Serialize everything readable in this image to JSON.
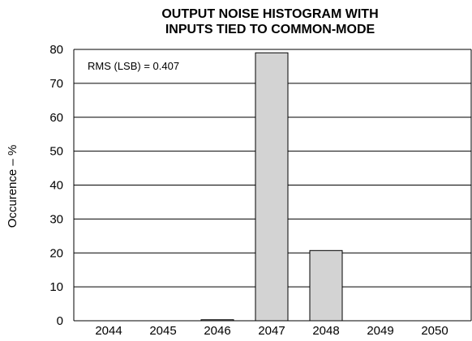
{
  "chart_data": {
    "type": "bar",
    "title_lines": [
      "OUTPUT NOISE HISTOGRAM WITH",
      "INPUTS TIED TO COMMON-MODE"
    ],
    "xlabel": "",
    "ylabel": "Occurence – %",
    "categories": [
      "2044",
      "2045",
      "2046",
      "2047",
      "2048",
      "2049",
      "2050"
    ],
    "values": [
      0,
      0,
      0.3,
      79,
      20.7,
      0,
      0
    ],
    "ylim": [
      0,
      80
    ],
    "yticks": [
      0,
      10,
      20,
      30,
      40,
      50,
      60,
      70,
      80
    ],
    "grid": true,
    "annotation": "RMS (LSB) = 0.407",
    "colors": {
      "bar_fill": "#d3d3d3",
      "bar_stroke": "#000000",
      "grid": "#000000"
    }
  }
}
